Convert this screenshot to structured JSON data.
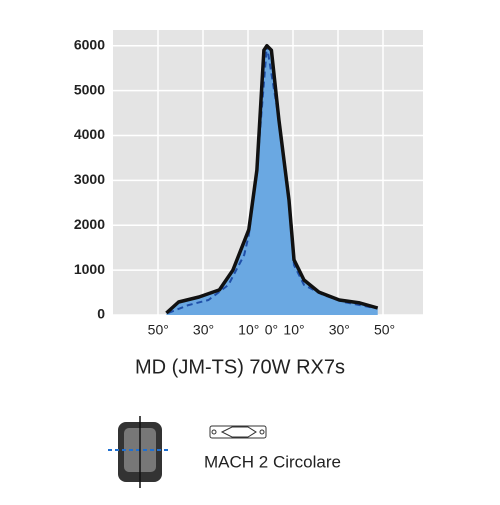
{
  "chart_data": {
    "type": "line",
    "title": "MD (JM-TS) 70W  RX7s",
    "caption": "MACH 2 Circolare",
    "xlim": [
      -70,
      67
    ],
    "ylim": [
      0,
      6350
    ],
    "yticks": [
      0,
      1000,
      2000,
      3000,
      4000,
      5000,
      6000
    ],
    "xticks": [
      {
        "value": -50,
        "label": "50°"
      },
      {
        "value": -30,
        "label": "30°"
      },
      {
        "value": -10,
        "label": "10°"
      },
      {
        "value": 0,
        "label": "0°"
      },
      {
        "value": 10,
        "label": "10°"
      },
      {
        "value": 30,
        "label": "30°"
      },
      {
        "value": 50,
        "label": "50°"
      }
    ],
    "background": "#e4e4e4",
    "series": [
      {
        "color": "#111111",
        "fill": "#6aa8e2",
        "dash": false,
        "x": [
          -46.4,
          -41,
          -32,
          -23,
          -17,
          -10,
          -6.4,
          -3.3,
          -2,
          0,
          3.3,
          7.8,
          10,
          14.4,
          21,
          30,
          39,
          47
        ],
        "values": [
          45,
          290,
          400,
          560,
          1000,
          1900,
          3230,
          5900,
          6000,
          5900,
          4350,
          2560,
          1230,
          780,
          510,
          335,
          270,
          155
        ]
      },
      {
        "color": "#1f4fa8",
        "dash": true,
        "x": [
          -45.6,
          -36.7,
          -27.8,
          -19,
          -12,
          -10,
          -6.4,
          -2,
          3.3,
          7.8,
          10,
          14.4,
          23,
          32,
          45.6
        ],
        "values": [
          45,
          220,
          335,
          670,
          1340,
          1780,
          3230,
          6000,
          4350,
          2560,
          1115,
          670,
          445,
          290,
          155
        ]
      }
    ]
  }
}
